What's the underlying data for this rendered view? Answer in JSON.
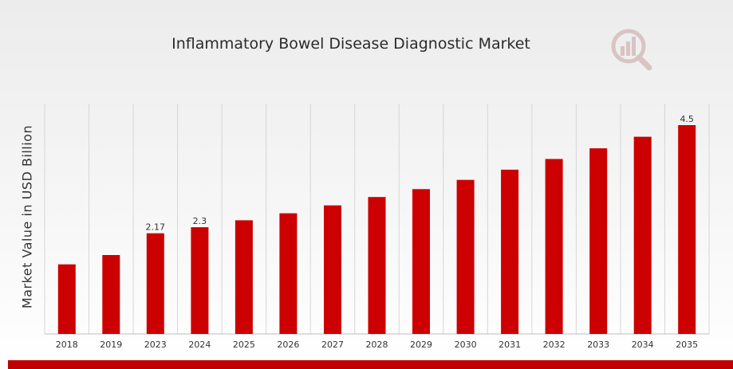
{
  "title": "Inflammatory Bowel Disease Diagnostic Market",
  "logo_icon": "magnifier-bar-chart-icon",
  "colors": {
    "bar": "#cc0000",
    "band": "#c00000",
    "grid": "#d6d6d6",
    "text": "#333333"
  },
  "chart_data": {
    "type": "bar",
    "title": "Inflammatory Bowel Disease Diagnostic Market",
    "xlabel": "",
    "ylabel": "Market Value in USD Billion",
    "categories": [
      "2018",
      "2019",
      "2023",
      "2024",
      "2025",
      "2026",
      "2027",
      "2028",
      "2029",
      "2030",
      "2031",
      "2032",
      "2033",
      "2034",
      "2035"
    ],
    "values": [
      1.5,
      1.7,
      2.17,
      2.3,
      2.45,
      2.6,
      2.77,
      2.95,
      3.12,
      3.32,
      3.54,
      3.77,
      4.0,
      4.25,
      4.5
    ],
    "data_labels": [
      "",
      "",
      "2.17",
      "2.3",
      "",
      "",
      "",
      "",
      "",
      "",
      "",
      "",
      "",
      "",
      "4.5"
    ],
    "ylim": [
      0,
      4.5
    ],
    "grid": "vertical",
    "legend": "none"
  }
}
